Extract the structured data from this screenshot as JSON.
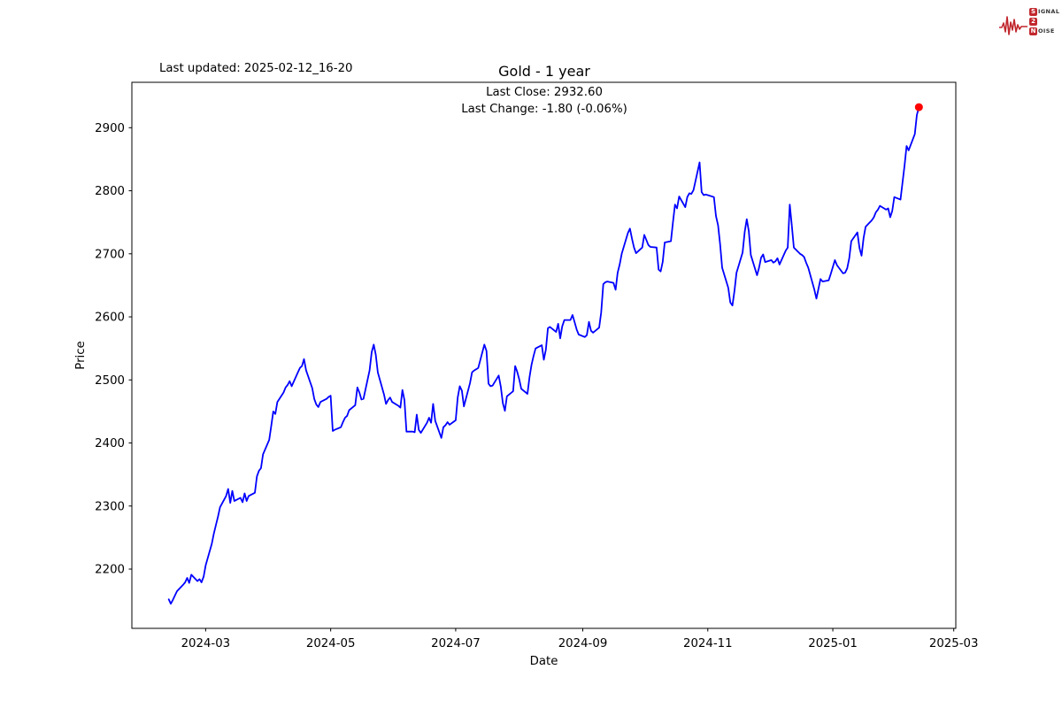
{
  "header": {
    "last_updated": "Last updated: 2025-02-12_16-20",
    "title": "Gold - 1 year",
    "subtitle_line1": "Last Close: 2932.60",
    "subtitle_line2": "Last Change: -1.80 (-0.06%)"
  },
  "logo": {
    "color": "#C1272D",
    "word1_initial": "S",
    "word1_rest": "IGNAL",
    "word2_initial": "2",
    "word3_initial": "N",
    "word3_rest": "OISE"
  },
  "chart_data": {
    "type": "line",
    "title": "Gold - 1 year",
    "xlabel": "Date",
    "ylabel": "Price",
    "grid": false,
    "legend": "none",
    "line_color": "#0000FF",
    "marker_color": "#FF0000",
    "axis_color": "#000000",
    "xlim": [
      "2024-01-25",
      "2025-03-02"
    ],
    "ylim": [
      2106,
      2972
    ],
    "y_ticks": [
      2200,
      2300,
      2400,
      2500,
      2600,
      2700,
      2800,
      2900
    ],
    "x_ticks": [
      {
        "label": "2024-03",
        "date": "2024-03-01"
      },
      {
        "label": "2024-05",
        "date": "2024-05-01"
      },
      {
        "label": "2024-07",
        "date": "2024-07-01"
      },
      {
        "label": "2024-09",
        "date": "2024-09-01"
      },
      {
        "label": "2024-11",
        "date": "2024-11-01"
      },
      {
        "label": "2025-01",
        "date": "2025-01-01"
      },
      {
        "label": "2025-03",
        "date": "2025-03-01"
      }
    ],
    "end_marker": {
      "date": "2025-02-12",
      "price": 2932.6
    },
    "series": [
      {
        "name": "Gold",
        "points": [
          [
            "2024-02-12",
            2152
          ],
          [
            "2024-02-13",
            2145
          ],
          [
            "2024-02-14",
            2151
          ],
          [
            "2024-02-15",
            2158
          ],
          [
            "2024-02-16",
            2165
          ],
          [
            "2024-02-19",
            2175
          ],
          [
            "2024-02-20",
            2179
          ],
          [
            "2024-02-21",
            2186
          ],
          [
            "2024-02-22",
            2178
          ],
          [
            "2024-02-23",
            2191
          ],
          [
            "2024-02-26",
            2181
          ],
          [
            "2024-02-27",
            2184
          ],
          [
            "2024-02-28",
            2179
          ],
          [
            "2024-02-29",
            2188
          ],
          [
            "2024-03-01",
            2206
          ],
          [
            "2024-03-04",
            2240
          ],
          [
            "2024-03-05",
            2256
          ],
          [
            "2024-03-06",
            2270
          ],
          [
            "2024-03-07",
            2283
          ],
          [
            "2024-03-08",
            2298
          ],
          [
            "2024-03-11",
            2316
          ],
          [
            "2024-03-12",
            2327
          ],
          [
            "2024-03-13",
            2305
          ],
          [
            "2024-03-14",
            2324
          ],
          [
            "2024-03-15",
            2308
          ],
          [
            "2024-03-18",
            2313
          ],
          [
            "2024-03-19",
            2306
          ],
          [
            "2024-03-20",
            2320
          ],
          [
            "2024-03-21",
            2308
          ],
          [
            "2024-03-22",
            2316
          ],
          [
            "2024-03-25",
            2321
          ],
          [
            "2024-03-26",
            2347
          ],
          [
            "2024-03-27",
            2356
          ],
          [
            "2024-03-28",
            2360
          ],
          [
            "2024-03-29",
            2382
          ],
          [
            "2024-04-01",
            2405
          ],
          [
            "2024-04-02",
            2427
          ],
          [
            "2024-04-03",
            2450
          ],
          [
            "2024-04-04",
            2446
          ],
          [
            "2024-04-05",
            2465
          ],
          [
            "2024-04-08",
            2480
          ],
          [
            "2024-04-09",
            2488
          ],
          [
            "2024-04-10",
            2492
          ],
          [
            "2024-04-11",
            2498
          ],
          [
            "2024-04-12",
            2490
          ],
          [
            "2024-04-15",
            2512
          ],
          [
            "2024-04-16",
            2519
          ],
          [
            "2024-04-17",
            2522
          ],
          [
            "2024-04-18",
            2533
          ],
          [
            "2024-04-19",
            2515
          ],
          [
            "2024-04-22",
            2487
          ],
          [
            "2024-04-23",
            2470
          ],
          [
            "2024-04-24",
            2461
          ],
          [
            "2024-04-25",
            2457
          ],
          [
            "2024-04-26",
            2465
          ],
          [
            "2024-04-29",
            2470
          ],
          [
            "2024-04-30",
            2473
          ],
          [
            "2024-05-01",
            2475
          ],
          [
            "2024-05-02",
            2419
          ],
          [
            "2024-05-03",
            2421
          ],
          [
            "2024-05-06",
            2425
          ],
          [
            "2024-05-07",
            2433
          ],
          [
            "2024-05-08",
            2440
          ],
          [
            "2024-05-09",
            2443
          ],
          [
            "2024-05-10",
            2452
          ],
          [
            "2024-05-13",
            2460
          ],
          [
            "2024-05-14",
            2488
          ],
          [
            "2024-05-15",
            2480
          ],
          [
            "2024-05-16",
            2469
          ],
          [
            "2024-05-17",
            2470
          ],
          [
            "2024-05-20",
            2515
          ],
          [
            "2024-05-21",
            2544
          ],
          [
            "2024-05-22",
            2556
          ],
          [
            "2024-05-23",
            2540
          ],
          [
            "2024-05-24",
            2512
          ],
          [
            "2024-05-27",
            2477
          ],
          [
            "2024-05-28",
            2462
          ],
          [
            "2024-05-29",
            2468
          ],
          [
            "2024-05-30",
            2472
          ],
          [
            "2024-05-31",
            2465
          ],
          [
            "2024-06-03",
            2459
          ],
          [
            "2024-06-04",
            2456
          ],
          [
            "2024-06-05",
            2484
          ],
          [
            "2024-06-06",
            2468
          ],
          [
            "2024-06-07",
            2418
          ],
          [
            "2024-06-10",
            2418
          ],
          [
            "2024-06-11",
            2417
          ],
          [
            "2024-06-12",
            2445
          ],
          [
            "2024-06-13",
            2421
          ],
          [
            "2024-06-14",
            2416
          ],
          [
            "2024-06-17",
            2432
          ],
          [
            "2024-06-18",
            2440
          ],
          [
            "2024-06-19",
            2432
          ],
          [
            "2024-06-20",
            2462
          ],
          [
            "2024-06-21",
            2435
          ],
          [
            "2024-06-24",
            2408
          ],
          [
            "2024-06-25",
            2425
          ],
          [
            "2024-06-26",
            2428
          ],
          [
            "2024-06-27",
            2433
          ],
          [
            "2024-06-28",
            2429
          ],
          [
            "2024-07-01",
            2436
          ],
          [
            "2024-07-02",
            2472
          ],
          [
            "2024-07-03",
            2490
          ],
          [
            "2024-07-04",
            2483
          ],
          [
            "2024-07-05",
            2458
          ],
          [
            "2024-07-08",
            2495
          ],
          [
            "2024-07-09",
            2512
          ],
          [
            "2024-07-10",
            2515
          ],
          [
            "2024-07-11",
            2517
          ],
          [
            "2024-07-12",
            2519
          ],
          [
            "2024-07-15",
            2556
          ],
          [
            "2024-07-16",
            2546
          ],
          [
            "2024-07-17",
            2494
          ],
          [
            "2024-07-18",
            2490
          ],
          [
            "2024-07-19",
            2491
          ],
          [
            "2024-07-22",
            2507
          ],
          [
            "2024-07-23",
            2489
          ],
          [
            "2024-07-24",
            2463
          ],
          [
            "2024-07-25",
            2451
          ],
          [
            "2024-07-26",
            2474
          ],
          [
            "2024-07-29",
            2482
          ],
          [
            "2024-07-30",
            2522
          ],
          [
            "2024-07-31",
            2513
          ],
          [
            "2024-08-01",
            2501
          ],
          [
            "2024-08-02",
            2486
          ],
          [
            "2024-08-05",
            2478
          ],
          [
            "2024-08-06",
            2504
          ],
          [
            "2024-08-07",
            2524
          ],
          [
            "2024-08-08",
            2538
          ],
          [
            "2024-08-09",
            2550
          ],
          [
            "2024-08-12",
            2555
          ],
          [
            "2024-08-13",
            2532
          ],
          [
            "2024-08-14",
            2548
          ],
          [
            "2024-08-15",
            2582
          ],
          [
            "2024-08-16",
            2584
          ],
          [
            "2024-08-19",
            2576
          ],
          [
            "2024-08-20",
            2589
          ],
          [
            "2024-08-21",
            2566
          ],
          [
            "2024-08-22",
            2585
          ],
          [
            "2024-08-23",
            2595
          ],
          [
            "2024-08-26",
            2595
          ],
          [
            "2024-08-27",
            2603
          ],
          [
            "2024-08-28",
            2592
          ],
          [
            "2024-08-29",
            2580
          ],
          [
            "2024-08-30",
            2572
          ],
          [
            "2024-09-02",
            2568
          ],
          [
            "2024-09-03",
            2571
          ],
          [
            "2024-09-04",
            2592
          ],
          [
            "2024-09-05",
            2578
          ],
          [
            "2024-09-06",
            2575
          ],
          [
            "2024-09-09",
            2583
          ],
          [
            "2024-09-10",
            2607
          ],
          [
            "2024-09-11",
            2652
          ],
          [
            "2024-09-12",
            2655
          ],
          [
            "2024-09-13",
            2656
          ],
          [
            "2024-09-16",
            2654
          ],
          [
            "2024-09-17",
            2643
          ],
          [
            "2024-09-18",
            2670
          ],
          [
            "2024-09-19",
            2683
          ],
          [
            "2024-09-20",
            2700
          ],
          [
            "2024-09-23",
            2733
          ],
          [
            "2024-09-24",
            2740
          ],
          [
            "2024-09-25",
            2724
          ],
          [
            "2024-09-26",
            2710
          ],
          [
            "2024-09-27",
            2701
          ],
          [
            "2024-09-30",
            2710
          ],
          [
            "2024-10-01",
            2730
          ],
          [
            "2024-10-02",
            2722
          ],
          [
            "2024-10-03",
            2714
          ],
          [
            "2024-10-04",
            2711
          ],
          [
            "2024-10-07",
            2710
          ],
          [
            "2024-10-08",
            2675
          ],
          [
            "2024-10-09",
            2672
          ],
          [
            "2024-10-10",
            2687
          ],
          [
            "2024-10-11",
            2718
          ],
          [
            "2024-10-14",
            2720
          ],
          [
            "2024-10-15",
            2750
          ],
          [
            "2024-10-16",
            2778
          ],
          [
            "2024-10-17",
            2772
          ],
          [
            "2024-10-18",
            2791
          ],
          [
            "2024-10-21",
            2774
          ],
          [
            "2024-10-22",
            2790
          ],
          [
            "2024-10-23",
            2796
          ],
          [
            "2024-10-24",
            2795
          ],
          [
            "2024-10-25",
            2801
          ],
          [
            "2024-10-28",
            2845
          ],
          [
            "2024-10-29",
            2798
          ],
          [
            "2024-10-30",
            2793
          ],
          [
            "2024-10-31",
            2794
          ],
          [
            "2024-11-01",
            2793
          ],
          [
            "2024-11-04",
            2790
          ],
          [
            "2024-11-05",
            2760
          ],
          [
            "2024-11-06",
            2745
          ],
          [
            "2024-11-07",
            2715
          ],
          [
            "2024-11-08",
            2678
          ],
          [
            "2024-11-11",
            2646
          ],
          [
            "2024-11-12",
            2623
          ],
          [
            "2024-11-13",
            2618
          ],
          [
            "2024-11-14",
            2641
          ],
          [
            "2024-11-15",
            2670
          ],
          [
            "2024-11-18",
            2702
          ],
          [
            "2024-11-19",
            2735
          ],
          [
            "2024-11-20",
            2755
          ],
          [
            "2024-11-21",
            2736
          ],
          [
            "2024-11-22",
            2698
          ],
          [
            "2024-11-25",
            2666
          ],
          [
            "2024-11-26",
            2678
          ],
          [
            "2024-11-27",
            2694
          ],
          [
            "2024-11-28",
            2699
          ],
          [
            "2024-11-29",
            2687
          ],
          [
            "2024-12-02",
            2690
          ],
          [
            "2024-12-03",
            2686
          ],
          [
            "2024-12-04",
            2688
          ],
          [
            "2024-12-05",
            2693
          ],
          [
            "2024-12-06",
            2683
          ],
          [
            "2024-12-09",
            2705
          ],
          [
            "2024-12-10",
            2710
          ],
          [
            "2024-12-11",
            2778
          ],
          [
            "2024-12-12",
            2745
          ],
          [
            "2024-12-13",
            2710
          ],
          [
            "2024-12-16",
            2700
          ],
          [
            "2024-12-17",
            2698
          ],
          [
            "2024-12-18",
            2695
          ],
          [
            "2024-12-19",
            2686
          ],
          [
            "2024-12-20",
            2678
          ],
          [
            "2024-12-23",
            2643
          ],
          [
            "2024-12-24",
            2629
          ],
          [
            "2024-12-26",
            2660
          ],
          [
            "2024-12-27",
            2656
          ],
          [
            "2024-12-30",
            2658
          ],
          [
            "2024-12-31",
            2668
          ],
          [
            "2025-01-02",
            2690
          ],
          [
            "2025-01-03",
            2682
          ],
          [
            "2025-01-06",
            2669
          ],
          [
            "2025-01-07",
            2670
          ],
          [
            "2025-01-08",
            2677
          ],
          [
            "2025-01-09",
            2693
          ],
          [
            "2025-01-10",
            2720
          ],
          [
            "2025-01-13",
            2734
          ],
          [
            "2025-01-14",
            2709
          ],
          [
            "2025-01-15",
            2697
          ],
          [
            "2025-01-16",
            2725
          ],
          [
            "2025-01-17",
            2743
          ],
          [
            "2025-01-20",
            2753
          ],
          [
            "2025-01-21",
            2758
          ],
          [
            "2025-01-22",
            2766
          ],
          [
            "2025-01-23",
            2770
          ],
          [
            "2025-01-24",
            2776
          ],
          [
            "2025-01-27",
            2770
          ],
          [
            "2025-01-28",
            2772
          ],
          [
            "2025-01-29",
            2758
          ],
          [
            "2025-01-30",
            2768
          ],
          [
            "2025-01-31",
            2790
          ],
          [
            "2025-02-03",
            2786
          ],
          [
            "2025-02-04",
            2813
          ],
          [
            "2025-02-05",
            2840
          ],
          [
            "2025-02-06",
            2871
          ],
          [
            "2025-02-07",
            2864
          ],
          [
            "2025-02-10",
            2890
          ],
          [
            "2025-02-11",
            2920
          ],
          [
            "2025-02-12",
            2932.6
          ]
        ]
      }
    ]
  }
}
